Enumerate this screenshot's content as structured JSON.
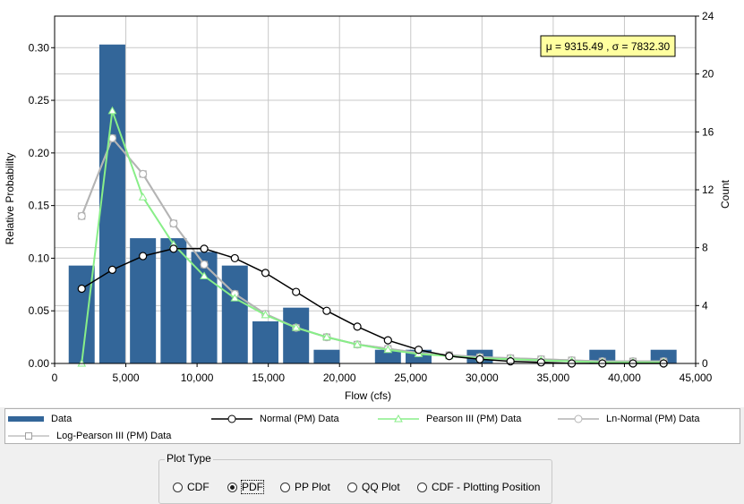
{
  "chart_data": {
    "type": "bar",
    "xlabel": "Flow (cfs)",
    "ylabel": "Relative Probability",
    "y2label": "Count",
    "xlim": [
      0,
      45000
    ],
    "ylim": [
      0,
      0.33
    ],
    "y2lim": [
      0,
      24
    ],
    "x_ticks": [
      0,
      5000,
      10000,
      15000,
      20000,
      25000,
      30000,
      35000,
      40000,
      45000
    ],
    "x_tick_labels": [
      "0",
      "5,000",
      "10,000",
      "15,000",
      "20,000",
      "25,000",
      "30,000",
      "35,000",
      "40,000",
      "45,000"
    ],
    "y_ticks": [
      0,
      0.05,
      0.1,
      0.15,
      0.2,
      0.25,
      0.3
    ],
    "y_tick_labels": [
      "0.00",
      "0.05",
      "0.10",
      "0.15",
      "0.20",
      "0.25",
      "0.30"
    ],
    "y2_ticks": [
      0,
      4,
      8,
      12,
      16,
      20,
      24
    ],
    "y2_tick_labels": [
      "0",
      "4",
      "8",
      "12",
      "16",
      "20",
      "24"
    ],
    "grid": true,
    "annotation": "μ = 9315.49 , σ = 7832.30",
    "annotation_bg": "#ffffa0",
    "bar_color": "#336699",
    "bars": {
      "name": "Data",
      "x": [
        1900,
        4050,
        6200,
        8350,
        10500,
        12650,
        14800,
        16950,
        19100,
        21250,
        23400,
        25550,
        27700,
        29850,
        32000,
        34150,
        36300,
        38450,
        40600,
        42750
      ],
      "values": [
        0.093,
        0.303,
        0.119,
        0.119,
        0.106,
        0.093,
        0.04,
        0.053,
        0.013,
        0.0,
        0.013,
        0.013,
        0.0,
        0.013,
        0.0,
        0.0,
        0.0,
        0.013,
        0.0,
        0.013
      ]
    },
    "series": [
      {
        "name": "Normal (PM) Data",
        "color": "#000000",
        "marker": "circle",
        "x": [
          1900,
          4050,
          6200,
          8350,
          10500,
          12650,
          14800,
          16950,
          19100,
          21250,
          23400,
          25550,
          27700,
          29850,
          32000,
          34150,
          36300,
          38450,
          40600,
          42750
        ],
        "values": [
          0.071,
          0.089,
          0.102,
          0.109,
          0.109,
          0.1,
          0.086,
          0.068,
          0.05,
          0.035,
          0.022,
          0.013,
          0.007,
          0.004,
          0.002,
          0.001,
          0.0,
          0.0,
          0.0,
          0.0
        ]
      },
      {
        "name": "Pearson III (PM) Data",
        "color": "#88ee88",
        "marker": "triangle",
        "x": [
          1900,
          4050,
          6200,
          8350,
          10500,
          12650,
          14800,
          16950,
          19100,
          21250,
          23400,
          25550,
          27700,
          29850,
          32000,
          34150,
          36300,
          38450,
          40600,
          42750
        ],
        "values": [
          0.0,
          0.24,
          0.158,
          0.113,
          0.083,
          0.062,
          0.046,
          0.034,
          0.025,
          0.018,
          0.013,
          0.009,
          0.007,
          0.005,
          0.004,
          0.003,
          0.002,
          0.001,
          0.001,
          0.001
        ]
      },
      {
        "name": "Ln-Normal (PM) Data",
        "color": "#b4b4b4",
        "marker": "circle",
        "x": [
          1900,
          4050,
          6200,
          8350,
          10500,
          12650,
          14800,
          16950,
          19100,
          21250,
          23400,
          25550,
          27700,
          29850,
          32000,
          34150,
          36300,
          38450,
          40600,
          42750
        ],
        "values": [
          0.14,
          0.214,
          0.18,
          0.133,
          0.094,
          0.066,
          0.047,
          0.034,
          0.025,
          0.018,
          0.014,
          0.01,
          0.008,
          0.006,
          0.005,
          0.004,
          0.003,
          0.002,
          0.002,
          0.002
        ]
      },
      {
        "name": "Log-Pearson III (PM) Data",
        "color": "#c0c0c0",
        "marker": "square",
        "x": [
          1900,
          4050,
          6200,
          8350,
          10500,
          12650,
          14800,
          16950,
          19100,
          21250,
          23400,
          25550,
          27700,
          29850,
          32000,
          34150,
          36300,
          38450,
          40600,
          42750
        ],
        "values": [
          0.14,
          0.214,
          0.18,
          0.133,
          0.094,
          0.066,
          0.047,
          0.034,
          0.025,
          0.018,
          0.014,
          0.01,
          0.008,
          0.006,
          0.005,
          0.004,
          0.003,
          0.002,
          0.002,
          0.002
        ]
      }
    ]
  },
  "legend": {
    "items": [
      {
        "label": "Data",
        "kind": "bar",
        "color": "#336699"
      },
      {
        "label": "Normal (PM) Data",
        "kind": "line-circle",
        "color": "#000000"
      },
      {
        "label": "Pearson III (PM) Data",
        "kind": "line-triangle",
        "color": "#88ee88"
      },
      {
        "label": "Ln-Normal (PM) Data",
        "kind": "line-circle",
        "color": "#b4b4b4"
      },
      {
        "label": "Log-Pearson III (PM) Data",
        "kind": "line-square",
        "color": "#c0c0c0"
      }
    ]
  },
  "plot_type": {
    "title": "Plot Type",
    "options": [
      {
        "label": "CDF",
        "checked": false
      },
      {
        "label": "PDF",
        "checked": true
      },
      {
        "label": "PP Plot",
        "checked": false
      },
      {
        "label": "QQ Plot",
        "checked": false
      },
      {
        "label": "CDF - Plotting Position",
        "checked": false
      }
    ]
  }
}
